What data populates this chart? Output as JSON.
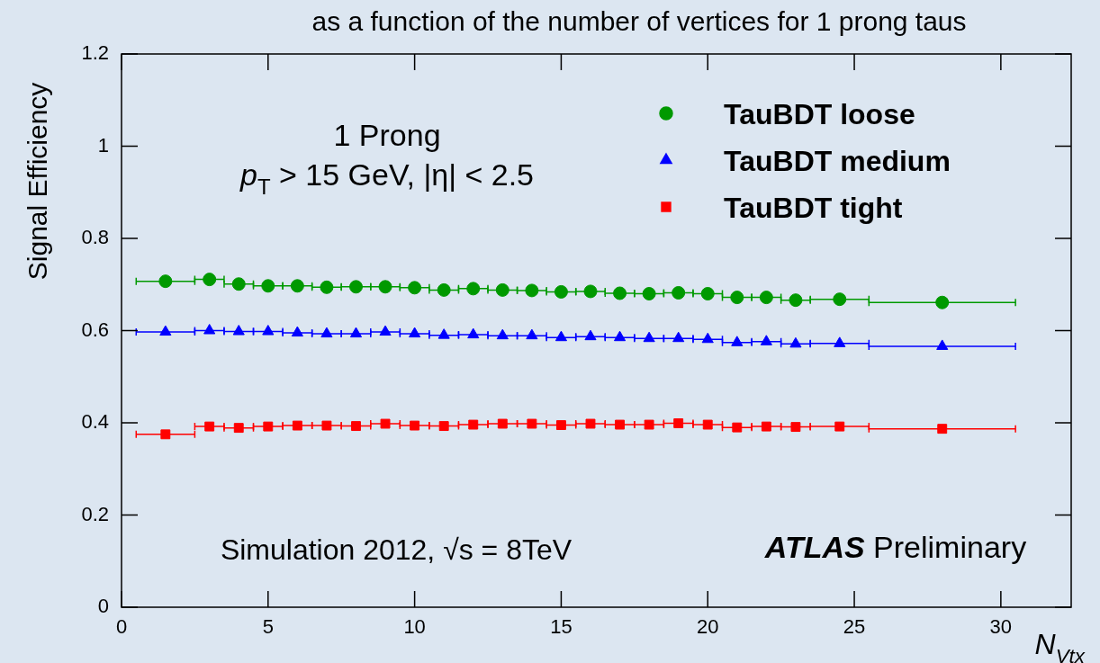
{
  "chart_data": {
    "type": "scatter",
    "title": "as a function of the number of vertices for 1 prong taus",
    "xlabel": "N$_{Vtx}$",
    "ylabel": "Signal Efficiency",
    "x": [
      1.5,
      3,
      4,
      5,
      6,
      7,
      8,
      9,
      10,
      11,
      12,
      13,
      14,
      15,
      16,
      17,
      18,
      19,
      20,
      21,
      22,
      23,
      24.5,
      28
    ],
    "series": [
      {
        "name": "TauBDT loose",
        "color": "#009900",
        "marker": "circle",
        "values": [
          0.707,
          0.711,
          0.701,
          0.697,
          0.697,
          0.694,
          0.695,
          0.695,
          0.693,
          0.688,
          0.691,
          0.688,
          0.687,
          0.684,
          0.685,
          0.681,
          0.68,
          0.682,
          0.68,
          0.672,
          0.672,
          0.666,
          0.668,
          0.661
        ],
        "xerrors": [
          1,
          0.5,
          0.5,
          0.5,
          0.5,
          0.5,
          0.5,
          0.5,
          0.5,
          0.5,
          0.5,
          0.5,
          0.5,
          0.5,
          0.5,
          0.5,
          0.5,
          0.5,
          0.5,
          0.5,
          0.5,
          0.5,
          1,
          2.5
        ]
      },
      {
        "name": "TauBDT medium",
        "color": "#0000ff",
        "marker": "triangle",
        "values": [
          0.597,
          0.6,
          0.598,
          0.598,
          0.595,
          0.593,
          0.593,
          0.597,
          0.593,
          0.59,
          0.591,
          0.589,
          0.589,
          0.585,
          0.587,
          0.585,
          0.583,
          0.583,
          0.581,
          0.574,
          0.576,
          0.571,
          0.572,
          0.566
        ],
        "xerrors": [
          1,
          0.5,
          0.5,
          0.5,
          0.5,
          0.5,
          0.5,
          0.5,
          0.5,
          0.5,
          0.5,
          0.5,
          0.5,
          0.5,
          0.5,
          0.5,
          0.5,
          0.5,
          0.5,
          0.5,
          0.5,
          0.5,
          1,
          2.5
        ]
      },
      {
        "name": "TauBDT tight",
        "color": "#ff0000",
        "marker": "square",
        "values": [
          0.375,
          0.392,
          0.389,
          0.392,
          0.394,
          0.394,
          0.393,
          0.398,
          0.394,
          0.393,
          0.396,
          0.398,
          0.398,
          0.395,
          0.398,
          0.396,
          0.396,
          0.399,
          0.396,
          0.39,
          0.392,
          0.391,
          0.392,
          0.387
        ],
        "xerrors": [
          1,
          0.5,
          0.5,
          0.5,
          0.5,
          0.5,
          0.5,
          0.5,
          0.5,
          0.5,
          0.5,
          0.5,
          0.5,
          0.5,
          0.5,
          0.5,
          0.5,
          0.5,
          0.5,
          0.5,
          0.5,
          0.5,
          1,
          2.5
        ]
      }
    ],
    "xlim": [
      0,
      32.4
    ],
    "xticks": [
      0,
      5,
      10,
      15,
      20,
      25,
      30
    ],
    "ylim": [
      0,
      1.2
    ],
    "yticks": [
      0,
      0.2,
      0.4,
      0.6,
      0.8,
      1,
      1.2
    ],
    "legend": "top right",
    "grid": false,
    "annotations": [
      "1 Prong",
      "p$_{T}$ > 15 GeV, |η| < 2.5",
      "Simulation 2012, √s = 8TeV",
      "ATLAS Preliminary"
    ]
  }
}
